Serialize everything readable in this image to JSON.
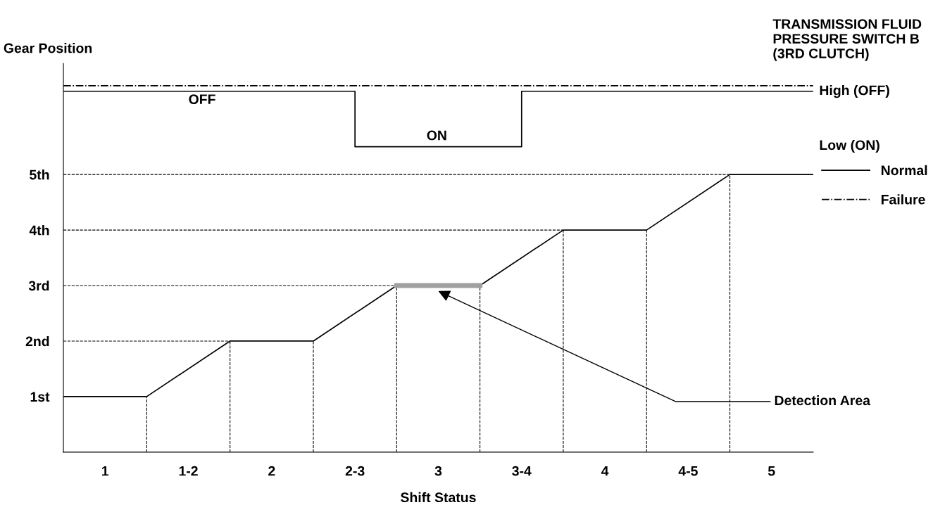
{
  "chart_data": {
    "type": "line",
    "xlabel": "Shift Status",
    "ylabel": "Gear Position",
    "xlim": [
      0.75,
      5.25
    ],
    "ylim": [
      0,
      7
    ],
    "xticks": [
      1,
      {
        "value": 1.5,
        "label": "1-2"
      },
      2,
      {
        "value": 2.5,
        "label": "2-3"
      },
      3,
      {
        "value": 3.5,
        "label": "3-4"
      },
      4,
      {
        "value": 4.5,
        "label": "4-5"
      },
      5
    ],
    "yticks": [
      {
        "value": 1,
        "label": "1st"
      },
      {
        "value": 2,
        "label": "2nd"
      },
      {
        "value": 3,
        "label": "3rd"
      },
      {
        "value": 4,
        "label": "4th"
      },
      {
        "value": 5,
        "label": "5th"
      }
    ],
    "legend": "right",
    "marker": "none",
    "series": [
      {
        "name": "Normal",
        "color": "#000000",
        "line_style": "solid",
        "x": [
          0.75,
          1.25,
          1.75,
          2.25,
          2.75,
          3.25,
          3.75,
          4.25,
          4.75,
          5.25
        ],
        "values": [
          1,
          1,
          2,
          2,
          3,
          3,
          4,
          4,
          5,
          5
        ]
      },
      {
        "color": "#000000",
        "line_style": "solid",
        "x": [
          0.75,
          2.5,
          2.5,
          3.5,
          3.5,
          5.25
        ],
        "values": [
          6.5,
          6.5,
          5.5,
          5.5,
          6.5,
          6.5
        ]
      },
      {
        "name": "Failure",
        "color": "#000000",
        "line_style": "dashdot",
        "x": [
          0.75,
          5.25
        ],
        "values": [
          6.6,
          6.6
        ]
      },
      {
        "color": "#a0a0a0",
        "line_style": "solid",
        "x": [
          2.75,
          3.25
        ],
        "values": [
          3,
          3
        ]
      }
    ],
    "ref_lines": [
      {
        "axis": "y",
        "value": 2,
        "line_style": "dashed"
      },
      {
        "axis": "y",
        "value": 3,
        "line_style": "dashed"
      },
      {
        "axis": "y",
        "value": 4,
        "line_style": "dashed"
      },
      {
        "axis": "y",
        "value": 5,
        "line_style": "dashed"
      },
      {
        "axis": "x",
        "value": 1.25,
        "line_style": "dashed"
      },
      {
        "axis": "x",
        "value": 1.75,
        "line_style": "dashed"
      },
      {
        "axis": "x",
        "value": 2.25,
        "line_style": "dashed"
      },
      {
        "axis": "x",
        "value": 2.75,
        "line_style": "dashed"
      },
      {
        "axis": "x",
        "value": 3.25,
        "line_style": "dashed"
      },
      {
        "axis": "x",
        "value": 3.75,
        "line_style": "dashed"
      },
      {
        "axis": "x",
        "value": 4.25,
        "line_style": "dashed"
      },
      {
        "axis": "x",
        "value": 4.75,
        "line_style": "dashed"
      }
    ],
    "annotations": [
      "TRANSMISSION FLUID\nPRESSURE SWITCH B\n(3RD CLUTCH)",
      "OFF",
      "ON",
      "High (OFF)",
      "Low (ON)",
      {
        "text": "Detection Area",
        "x": 3,
        "y": 2.9
      }
    ]
  }
}
